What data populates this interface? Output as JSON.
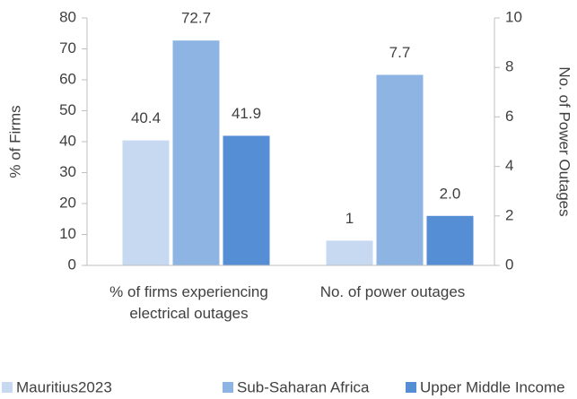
{
  "chart_data": {
    "type": "bar",
    "categories": [
      "% of firms experiencing electrical outages",
      "No. of power outages"
    ],
    "category_axes": [
      "y",
      "y2"
    ],
    "series": [
      {
        "name": "Mauritius2023",
        "color": "#c6d9f1",
        "values": [
          40.4,
          1
        ]
      },
      {
        "name": "Sub-Saharan Africa",
        "color": "#8db4e2",
        "values": [
          72.7,
          7.7
        ]
      },
      {
        "name": "Upper Middle Income",
        "color": "#558ed5",
        "values": [
          41.9,
          2.0
        ],
        "value_labels": [
          "41.9",
          "2.0"
        ]
      }
    ],
    "ylabel": "% of Firms",
    "y2label": "No. of Power Outages",
    "ylim": [
      0,
      80
    ],
    "yticks": [
      0,
      10,
      20,
      30,
      40,
      50,
      60,
      70,
      80
    ],
    "y2lim": [
      0,
      10
    ],
    "y2ticks": [
      0,
      2,
      4,
      6,
      8,
      10
    ],
    "legend": "bottom"
  }
}
